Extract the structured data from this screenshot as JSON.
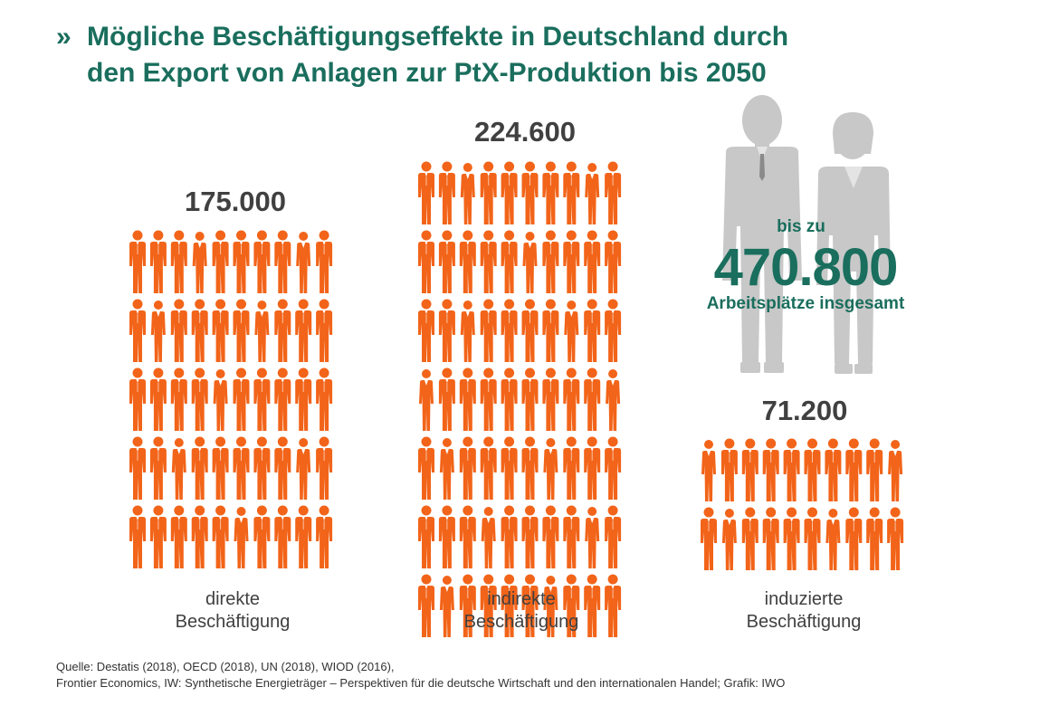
{
  "colors": {
    "accent_green": "#1a6e5d",
    "person_orange": "#f26419",
    "big_figure_gray": "#c8c8c8",
    "value_gray": "#404040"
  },
  "title": {
    "marker": "»",
    "line1": "Mögliche Beschäftigungseffekte in Deutschland durch",
    "line2": "den Export von Anlagen zur PtX-Produktion bis 2050"
  },
  "total": {
    "prefix": "bis zu",
    "value": "470.800",
    "suffix": "Arbeitsplätze insgesamt"
  },
  "source": {
    "line1": "Quelle: Destatis (2018), OECD (2018), UN (2018), WIOD (2016),",
    "line2": "Frontier Economics, IW: Synthetische Energieträger – Perspektiven für die deutsche Wirtschaft und den internationalen Handel; Grafik: IWO"
  },
  "chart_data": {
    "type": "bar",
    "categories": [
      "direkte Beschäftigung",
      "indirekte Beschäftigung",
      "induzierte Beschäftigung"
    ],
    "values": [
      175000,
      224600,
      71200
    ],
    "value_labels": [
      "175.000",
      "224.600",
      "71.200"
    ],
    "category_lines": [
      [
        "direkte",
        "Beschäftigung"
      ],
      [
        "indirekte",
        "Beschäftigung"
      ],
      [
        "induzierte",
        "Beschäftigung"
      ]
    ],
    "pictogram_rows": [
      5,
      7,
      2
    ],
    "pictogram_cols": [
      10,
      10,
      10
    ],
    "total_value": 470800,
    "title": "Mögliche Beschäftigungseffekte in Deutschland durch den Export von Anlagen zur PtX-Produktion bis 2050"
  }
}
